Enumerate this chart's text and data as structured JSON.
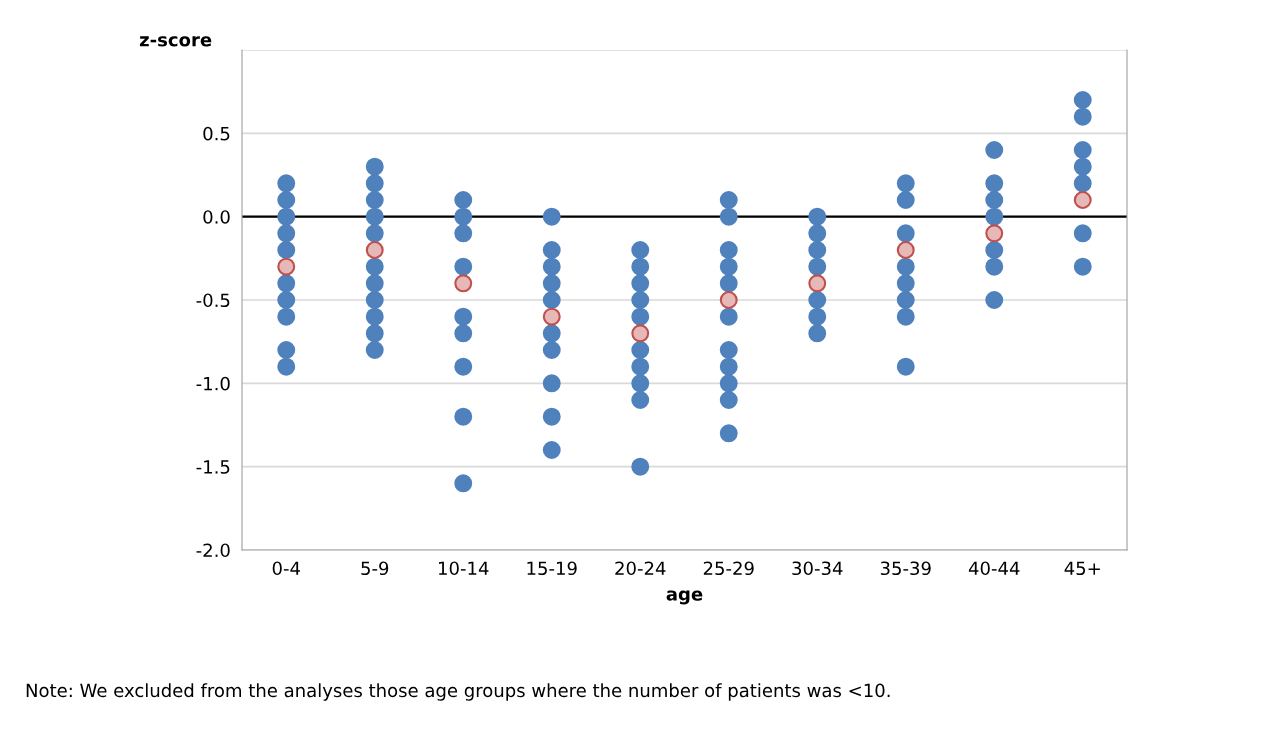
{
  "chart_data": {
    "type": "scatter",
    "xlabel": "age",
    "ylabel": "z-score",
    "categories": [
      "0-4",
      "5-9",
      "10-14",
      "15-19",
      "20-24",
      "25-29",
      "30-34",
      "35-39",
      "40-44",
      "45+"
    ],
    "series": [
      {
        "color": "#4f81bd",
        "x": [
          "0-4",
          "0-4",
          "0-4",
          "0-4",
          "0-4",
          "0-4",
          "0-4",
          "0-4",
          "0-4",
          "0-4",
          "5-9",
          "5-9",
          "5-9",
          "5-9",
          "5-9",
          "5-9",
          "5-9",
          "5-9",
          "5-9",
          "5-9",
          "5-9",
          "10-14",
          "10-14",
          "10-14",
          "10-14",
          "10-14",
          "10-14",
          "10-14",
          "10-14",
          "10-14",
          "15-19",
          "15-19",
          "15-19",
          "15-19",
          "15-19",
          "15-19",
          "15-19",
          "15-19",
          "15-19",
          "15-19",
          "20-24",
          "20-24",
          "20-24",
          "20-24",
          "20-24",
          "20-24",
          "20-24",
          "20-24",
          "20-24",
          "20-24",
          "25-29",
          "25-29",
          "25-29",
          "25-29",
          "25-29",
          "25-29",
          "25-29",
          "25-29",
          "25-29",
          "25-29",
          "25-29",
          "30-34",
          "30-34",
          "30-34",
          "30-34",
          "30-34",
          "30-34",
          "30-34",
          "35-39",
          "35-39",
          "35-39",
          "35-39",
          "35-39",
          "35-39",
          "35-39",
          "35-39",
          "40-44",
          "40-44",
          "40-44",
          "40-44",
          "40-44",
          "40-44",
          "40-44",
          "45+",
          "45+",
          "45+",
          "45+",
          "45+",
          "45+",
          "45+"
        ],
        "values": [
          0.2,
          0.1,
          0.0,
          -0.1,
          -0.2,
          -0.4,
          -0.5,
          -0.6,
          -0.8,
          -0.9,
          0.3,
          0.2,
          0.1,
          0.0,
          -0.1,
          -0.3,
          -0.4,
          -0.5,
          -0.6,
          -0.7,
          -0.8,
          0.1,
          0.0,
          -0.1,
          -0.3,
          -0.6,
          -0.7,
          -0.9,
          -1.2,
          -1.6,
          0.0,
          -0.2,
          -0.3,
          -0.4,
          -0.5,
          -0.7,
          -0.8,
          -1.0,
          -1.2,
          -1.4,
          -0.2,
          -0.3,
          -0.4,
          -0.5,
          -0.6,
          -0.8,
          -0.9,
          -1.0,
          -1.1,
          -1.5,
          0.1,
          0.0,
          -0.2,
          -0.3,
          -0.4,
          -0.6,
          -0.8,
          -0.9,
          -1.0,
          -1.1,
          -1.3,
          0.0,
          -0.1,
          -0.2,
          -0.3,
          -0.5,
          -0.6,
          -0.7,
          0.2,
          0.1,
          -0.1,
          -0.3,
          -0.4,
          -0.5,
          -0.6,
          -0.9,
          0.4,
          0.2,
          0.1,
          0.0,
          -0.2,
          -0.3,
          -0.5,
          0.7,
          0.6,
          0.4,
          0.3,
          0.2,
          -0.1,
          -0.3
        ]
      },
      {
        "color": "#e6b9b8",
        "x": [
          "0-4",
          "5-9",
          "10-14",
          "15-19",
          "20-24",
          "25-29",
          "30-34",
          "35-39",
          "40-44",
          "45+"
        ],
        "values": [
          -0.3,
          -0.2,
          -0.4,
          -0.6,
          -0.7,
          -0.5,
          -0.4,
          -0.2,
          -0.1,
          0.1
        ]
      }
    ],
    "ylim": [
      -2.0,
      1.0
    ],
    "yticks": [
      {
        "value": -2.0,
        "label": "-2.0"
      },
      {
        "value": -1.5,
        "label": "-1.5"
      },
      {
        "value": -1.0,
        "label": "-1.0"
      },
      {
        "value": -0.5,
        "label": "-0.5"
      },
      {
        "value": 0.0,
        "label": "0.0"
      },
      {
        "value": 0.5,
        "label": "0.5"
      },
      {
        "value": 1.0,
        "label": null
      }
    ],
    "grid": "y",
    "marker": "circle",
    "legend": false,
    "ref_lines": [
      {
        "axis": "y",
        "value": 0.0,
        "color": "#000000"
      }
    ],
    "annotations": [
      "Note: We excluded from the analyses those age groups where the number of patients was <10."
    ]
  }
}
